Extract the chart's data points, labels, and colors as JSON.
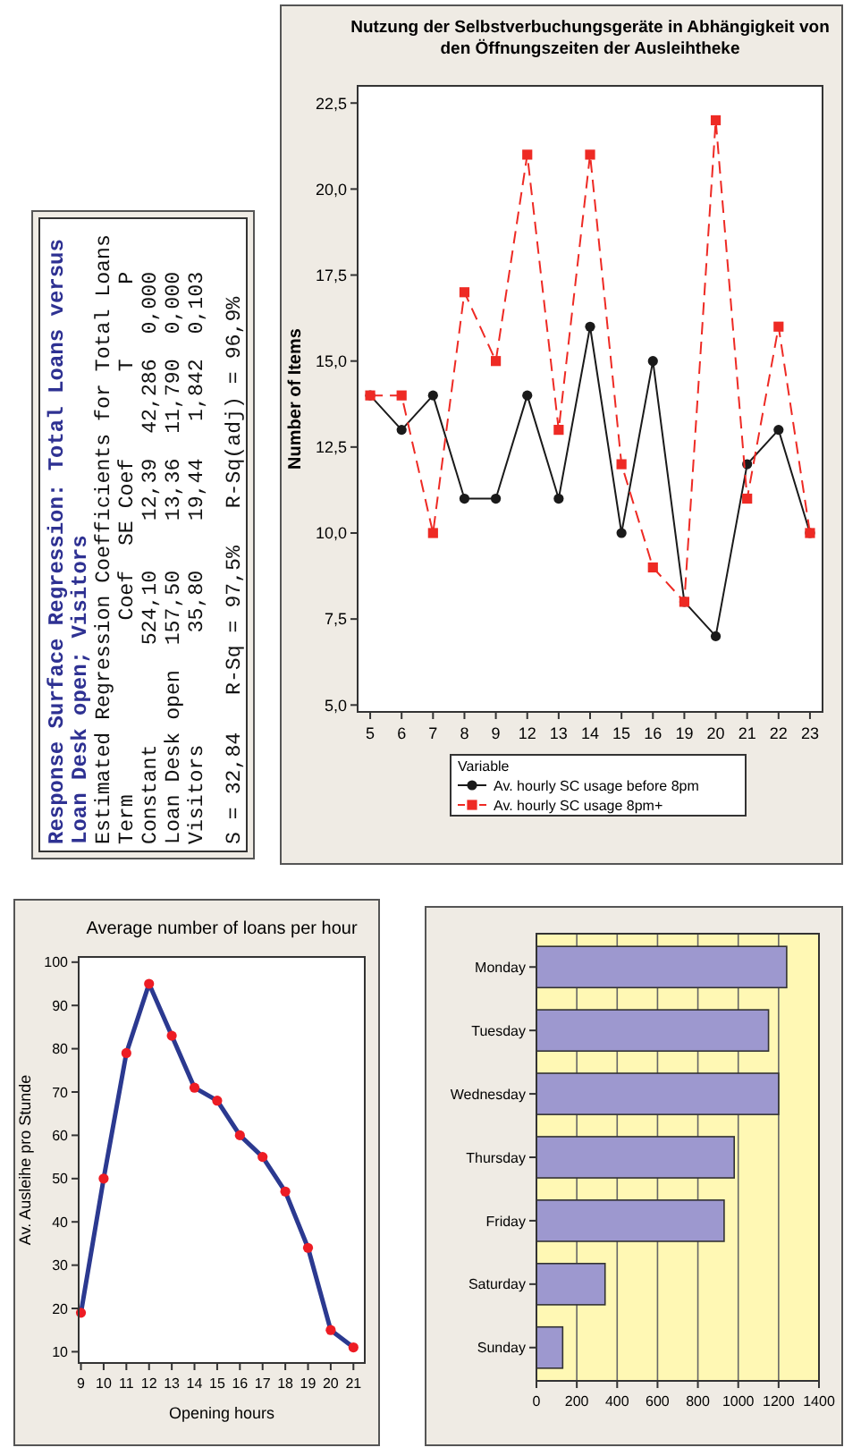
{
  "chart_data": [
    {
      "type": "line",
      "title": "Average number of loans per hour",
      "xlabel": "Opening hours",
      "ylabel": "Av. Ausleihe pro Stunde",
      "x": [
        9,
        10,
        11,
        12,
        13,
        14,
        15,
        16,
        17,
        18,
        19,
        20,
        21
      ],
      "xlim": [
        8.9,
        21.5
      ],
      "xticks": [
        9,
        10,
        11,
        12,
        13,
        14,
        15,
        16,
        17,
        18,
        19,
        20,
        21
      ],
      "ylim": [
        7.4,
        101.2
      ],
      "yticks": [
        10,
        20,
        30,
        40,
        50,
        60,
        70,
        80,
        90,
        100
      ],
      "marker": "circle",
      "series": [
        {
          "color": "#2b3990",
          "colors": [
            "#ed1c24",
            "#ed1c24",
            "#ed1c24",
            "#ed1c24",
            "#ed1c24",
            "#ed1c24",
            "#ed1c24",
            "#ed1c24",
            "#ed1c24",
            "#ed1c24",
            "#ed1c24",
            "#ed1c24",
            "#ed1c24"
          ],
          "values": [
            19,
            50,
            79,
            95,
            83,
            71,
            68,
            60,
            55,
            47,
            34,
            15,
            11
          ]
        }
      ]
    },
    {
      "type": "other",
      "title": "Response Surface Regression: Total Loans versus Loan Desk open; Visitors",
      "annotations": [
        "Estimated Regression Coefficients for Total Loans",
        "Term              Coef  SE Coef       T      P",
        "Constant        524,10    12,39  42,286  0,000",
        "Loan Desk open  157,50    13,36  11,790  0,000",
        "Visitors         35,80    19,44   1,842  0,103",
        "S = 32,84   R-Sq = 97,5%   R-Sq(adj) = 96,9%"
      ]
    },
    {
      "type": "bar",
      "orientation": "horizontal",
      "categories": [
        "Monday",
        "Tuesday",
        "Wednesday",
        "Thursday",
        "Friday",
        "Saturday",
        "Sunday"
      ],
      "values": [
        1240,
        1150,
        1200,
        980,
        930,
        340,
        130
      ],
      "color": "#9d98cf",
      "xlim": [
        0,
        1400
      ],
      "xticks": [
        0,
        200,
        400,
        600,
        800,
        1000,
        1200,
        1400
      ],
      "grid": "x"
    },
    {
      "type": "line",
      "title": "Nutzung der Selbstverbuchungsgeräte in Abhängigkeit von den Öffnungszeiten der Ausleihtheke",
      "ylabel": "Number of Items",
      "legend_title": "Variable",
      "legend": "bottom",
      "categories": [
        "5",
        "6",
        "7",
        "8",
        "9",
        "12",
        "13",
        "14",
        "15",
        "16",
        "19",
        "20",
        "21",
        "22",
        "23"
      ],
      "ylim": [
        4.8,
        23
      ],
      "yticks": [
        {
          "value": 5,
          "label": "5,0"
        },
        {
          "value": 7.5,
          "label": "7,5"
        },
        {
          "value": 10,
          "label": "10,0"
        },
        {
          "value": 12.5,
          "label": "12,5"
        },
        {
          "value": 15,
          "label": "15,0"
        },
        {
          "value": 17.5,
          "label": "17,5"
        },
        {
          "value": 20,
          "label": "20,0"
        },
        {
          "value": 22.5,
          "label": "22,5"
        }
      ],
      "series": [
        {
          "name": "Av. hourly SC usage before 8pm",
          "color": "#1a1a1a",
          "marker": "circle",
          "line_style": "solid",
          "values": [
            14,
            13,
            14,
            11,
            11,
            14,
            11,
            16,
            10,
            15,
            8,
            7,
            12,
            13,
            10
          ]
        },
        {
          "name": "Av. hourly SC usage 8pm+",
          "color": "#ee2a24",
          "marker": "square",
          "line_style": "dashed",
          "values": [
            14,
            14,
            10,
            17,
            15,
            21,
            13,
            21,
            12,
            9,
            8,
            22,
            11,
            16,
            10
          ]
        }
      ]
    }
  ]
}
